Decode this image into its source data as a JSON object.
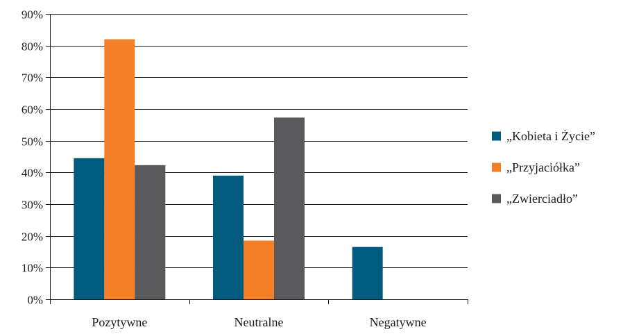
{
  "chart_data": {
    "type": "bar",
    "categories": [
      "Pozytywne",
      "Neutralne",
      "Negatywne"
    ],
    "series": [
      {
        "name": "„Kobieta i Życie”",
        "values": [
          44.5,
          39.0,
          16.5
        ],
        "color": "#005b7f"
      },
      {
        "name": "„Przyjaciółka”",
        "values": [
          82.0,
          18.5,
          0
        ],
        "color": "#f37f28"
      },
      {
        "name": "„Zwierciadło”",
        "values": [
          42.3,
          57.3,
          0
        ],
        "color": "#5a5a5c"
      }
    ],
    "ylim": [
      0,
      90
    ],
    "yticks": [
      0,
      10,
      20,
      30,
      40,
      50,
      60,
      70,
      80,
      90
    ],
    "ytick_labels": [
      "0%",
      "10%",
      "20%",
      "30%",
      "40%",
      "50%",
      "60%",
      "70%",
      "80%",
      "90%"
    ],
    "grid": true,
    "legend_position": "right"
  }
}
